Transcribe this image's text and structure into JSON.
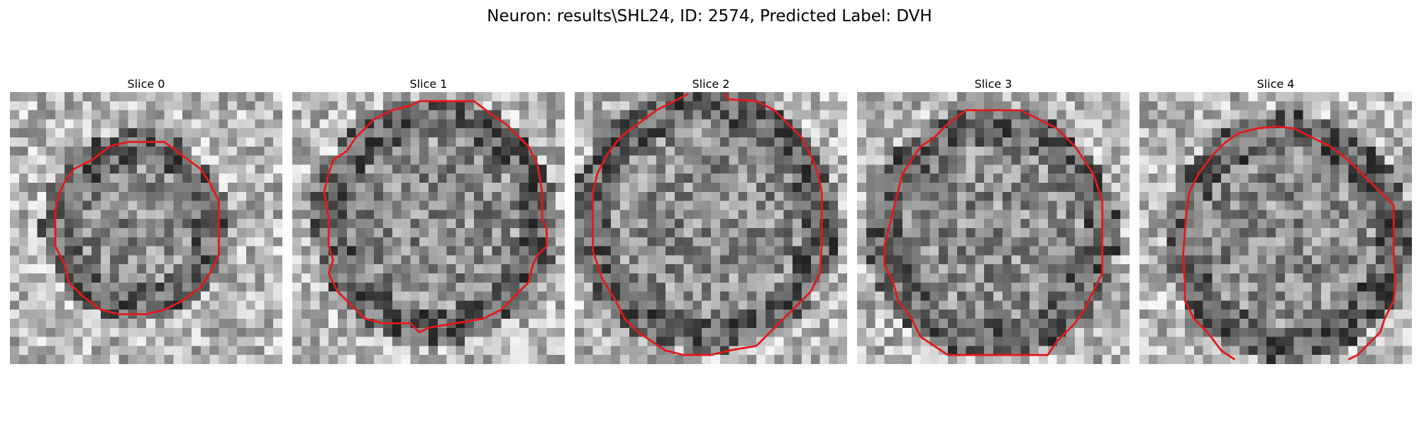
{
  "figure": {
    "title": "Neuron: results\\SHL24, ID: 2574, Predicted Label: DVH",
    "contour_color": "#e31a1c",
    "colormap": "gray",
    "grid_size": 30
  },
  "panels": [
    {
      "title": "Slice 0",
      "seed": 11,
      "contour_points": [
        [
          15,
          5.5
        ],
        [
          17,
          5.5
        ],
        [
          19,
          7
        ],
        [
          21,
          8.5
        ],
        [
          22,
          10
        ],
        [
          23,
          12
        ],
        [
          23,
          14
        ],
        [
          23,
          16
        ],
        [
          23,
          18
        ],
        [
          22,
          20
        ],
        [
          21,
          21.5
        ],
        [
          19,
          23
        ],
        [
          17,
          24
        ],
        [
          15,
          24.5
        ],
        [
          12,
          24.5
        ],
        [
          10,
          24
        ],
        [
          8,
          22.5
        ],
        [
          6.5,
          21
        ],
        [
          6,
          19
        ],
        [
          5,
          17
        ],
        [
          5,
          15
        ],
        [
          5,
          13
        ],
        [
          5.5,
          11
        ],
        [
          6,
          10
        ],
        [
          7,
          8.5
        ],
        [
          9,
          7.5
        ],
        [
          11,
          6
        ],
        [
          13,
          5.5
        ]
      ],
      "open": false
    },
    {
      "title": "Slice 1",
      "seed": 23,
      "contour_points": [
        [
          14,
          1
        ],
        [
          20,
          1
        ],
        [
          22,
          2.5
        ],
        [
          23.5,
          3.5
        ],
        [
          25,
          5
        ],
        [
          26,
          6
        ],
        [
          27,
          8
        ],
        [
          27.5,
          11
        ],
        [
          27.5,
          14
        ],
        [
          28,
          15
        ],
        [
          28,
          17
        ],
        [
          27,
          18
        ],
        [
          26.5,
          19
        ],
        [
          26,
          21
        ],
        [
          25,
          22
        ],
        [
          23,
          24
        ],
        [
          21,
          25
        ],
        [
          18,
          25.5
        ],
        [
          15,
          26
        ],
        [
          14,
          26.5
        ],
        [
          13,
          25.5
        ],
        [
          10,
          25.5
        ],
        [
          8,
          25
        ],
        [
          6,
          23
        ],
        [
          5,
          22
        ],
        [
          4,
          20
        ],
        [
          4.5,
          18.5
        ],
        [
          4,
          17
        ],
        [
          4,
          14
        ],
        [
          3.5,
          11
        ],
        [
          4,
          9
        ],
        [
          4.5,
          7.5
        ],
        [
          6,
          6.5
        ],
        [
          7,
          5
        ],
        [
          9,
          3
        ],
        [
          11,
          2
        ],
        [
          13,
          1.5
        ]
      ],
      "open": false
    },
    {
      "title": "Slice 2",
      "seed": 37,
      "contour_points": [
        [
          12.5,
          0.2
        ],
        [
          11,
          1
        ],
        [
          9,
          2
        ],
        [
          7,
          3.5
        ],
        [
          5,
          5
        ],
        [
          3.5,
          7
        ],
        [
          2.5,
          9
        ],
        [
          2,
          11
        ],
        [
          2,
          13
        ],
        [
          2,
          15
        ],
        [
          2,
          17.5
        ],
        [
          2.5,
          19
        ],
        [
          3,
          20.5
        ],
        [
          4.5,
          23
        ],
        [
          5.5,
          25
        ],
        [
          7,
          26.5
        ],
        [
          8.5,
          27.5
        ],
        [
          10,
          28.5
        ],
        [
          12,
          29
        ],
        [
          15,
          29
        ],
        [
          17,
          28.5
        ],
        [
          20,
          28
        ],
        [
          22,
          26
        ],
        [
          24,
          24
        ],
        [
          26,
          22
        ],
        [
          27,
          20
        ],
        [
          27.2,
          17
        ],
        [
          27.2,
          14
        ],
        [
          27.2,
          11
        ],
        [
          26.8,
          9
        ],
        [
          26,
          7
        ],
        [
          25,
          5
        ],
        [
          24,
          4
        ],
        [
          23,
          3
        ],
        [
          22,
          2
        ],
        [
          20,
          1
        ],
        [
          17,
          0.8
        ],
        [
          16.5,
          0.2
        ]
      ],
      "open": true
    },
    {
      "title": "Slice 3",
      "seed": 53,
      "contour_points": [
        [
          12,
          2
        ],
        [
          18,
          2
        ],
        [
          20,
          3
        ],
        [
          22,
          4
        ],
        [
          24,
          6
        ],
        [
          25,
          7.5
        ],
        [
          26,
          9
        ],
        [
          27,
          12
        ],
        [
          27,
          15
        ],
        [
          27,
          17
        ],
        [
          27,
          20
        ],
        [
          26,
          22
        ],
        [
          25,
          24
        ],
        [
          24,
          25.5
        ],
        [
          22,
          27.5
        ],
        [
          21,
          29
        ],
        [
          18,
          29
        ],
        [
          14,
          29
        ],
        [
          10,
          29
        ],
        [
          7,
          27
        ],
        [
          6,
          25
        ],
        [
          4.5,
          23
        ],
        [
          4,
          21
        ],
        [
          3,
          19
        ],
        [
          3,
          17
        ],
        [
          3.5,
          15
        ],
        [
          4,
          13
        ],
        [
          4.5,
          11
        ],
        [
          5,
          9
        ],
        [
          6,
          7.5
        ],
        [
          7,
          6
        ],
        [
          8.5,
          5
        ],
        [
          10,
          3.5
        ]
      ],
      "open": false
    },
    {
      "title": "Slice 4",
      "seed": 71,
      "contour_points": [
        [
          10.5,
          29.5
        ],
        [
          9,
          28.5
        ],
        [
          7.5,
          26.5
        ],
        [
          6,
          25
        ],
        [
          5,
          23
        ],
        [
          5,
          21
        ],
        [
          4.8,
          18
        ],
        [
          5,
          15.5
        ],
        [
          5.2,
          13
        ],
        [
          5.5,
          11
        ],
        [
          6.5,
          9
        ],
        [
          8,
          7
        ],
        [
          9.5,
          5.5
        ],
        [
          11,
          4.5
        ],
        [
          13,
          4
        ],
        [
          15,
          3.8
        ],
        [
          17,
          4
        ],
        [
          19,
          5
        ],
        [
          21,
          6
        ],
        [
          23,
          7.5
        ],
        [
          25,
          9.5
        ],
        [
          26.5,
          11
        ],
        [
          28,
          12.5
        ],
        [
          28,
          15
        ],
        [
          28,
          18
        ],
        [
          28.2,
          21
        ],
        [
          28,
          23
        ],
        [
          27,
          25
        ],
        [
          26.5,
          26.5
        ],
        [
          25,
          28
        ],
        [
          24,
          29
        ],
        [
          23,
          29.5
        ]
      ],
      "open": true
    }
  ]
}
